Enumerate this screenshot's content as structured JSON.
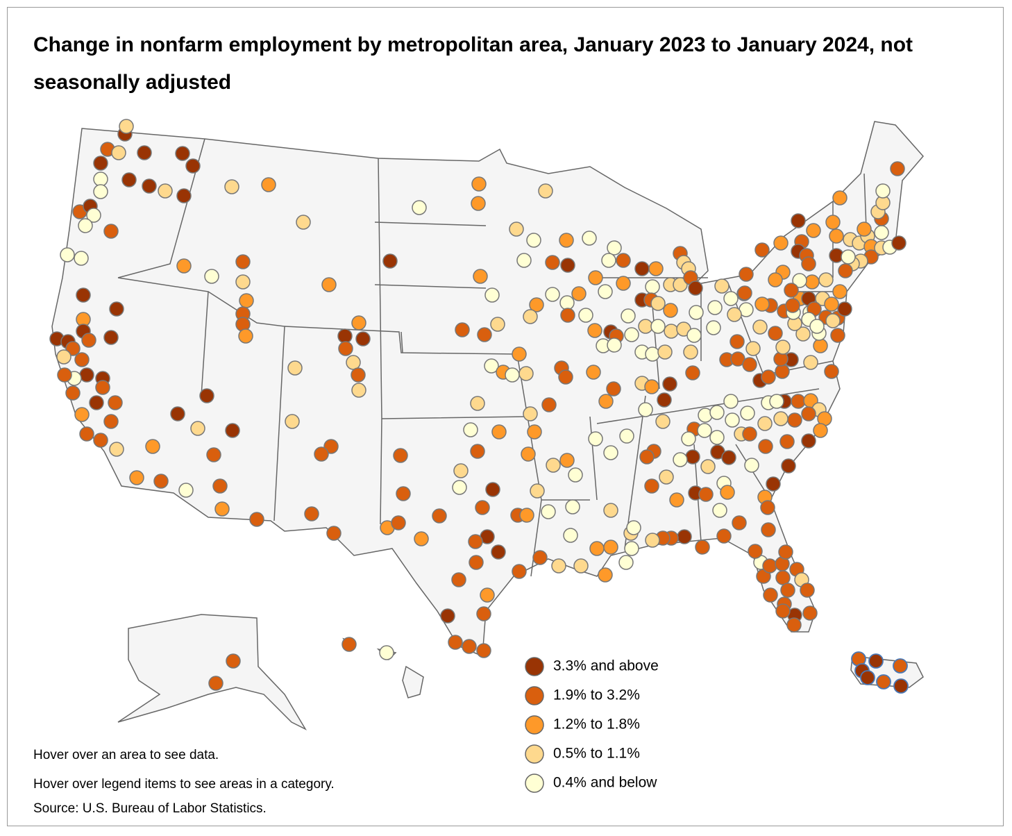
{
  "header": {
    "title": "Change in nonfarm employment by metropolitan area, January 2023 to January 2024, not seasonally adjusted"
  },
  "legend": [
    {
      "label": "3.3% and above",
      "color": "#993404"
    },
    {
      "label": "1.9% to 3.2%",
      "color": "#d95f0e"
    },
    {
      "label": "1.2% to 1.8%",
      "color": "#fe9929"
    },
    {
      "label": "0.5% to 1.1%",
      "color": "#fed98e"
    },
    {
      "label": "0.4% and below",
      "color": "#ffffd4"
    }
  ],
  "notes": [
    "Hover over an area to see data.",
    "Hover over legend items to see areas in a category.",
    "Source: U.S. Bureau of Labor Statistics."
  ]
}
